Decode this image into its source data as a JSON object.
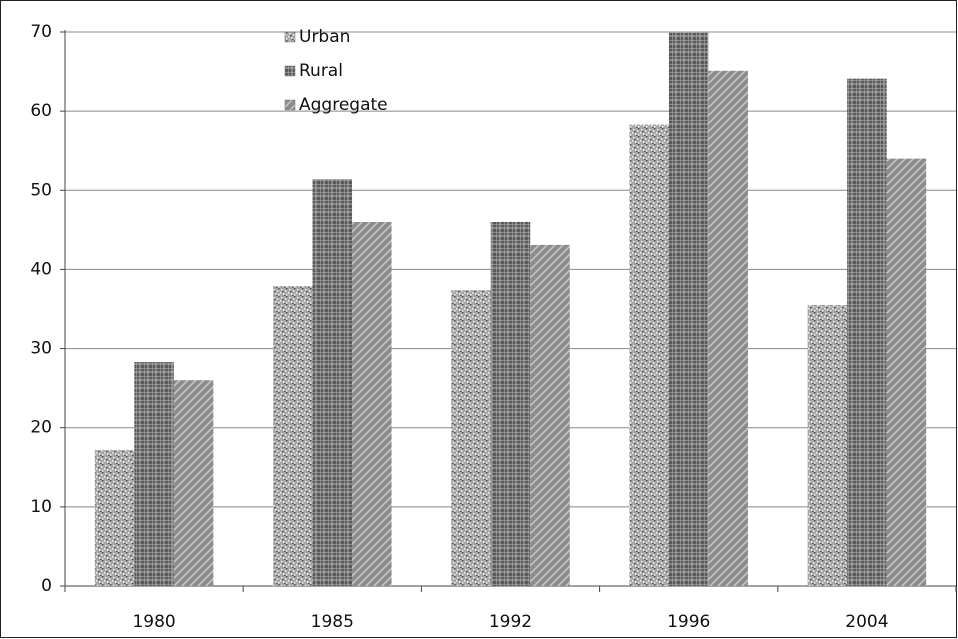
{
  "chart_data": {
    "type": "bar",
    "categories": [
      "1980",
      "1985",
      "1992",
      "1996",
      "2004"
    ],
    "series": [
      {
        "name": "Urban",
        "color": "#a8a8a8",
        "values": [
          17.2,
          37.9,
          37.4,
          58.3,
          35.5
        ]
      },
      {
        "name": "Rural",
        "color": "#5a5a5a",
        "values": [
          28.3,
          51.4,
          46.0,
          69.9,
          64.1
        ]
      },
      {
        "name": "Aggregate",
        "color": "#8c8c8c",
        "values": [
          26.0,
          46.0,
          43.1,
          65.1,
          54.0
        ]
      }
    ],
    "ylim": [
      0,
      70
    ],
    "yticks": [
      0,
      10,
      20,
      30,
      40,
      50,
      60,
      70
    ],
    "grid": true
  }
}
